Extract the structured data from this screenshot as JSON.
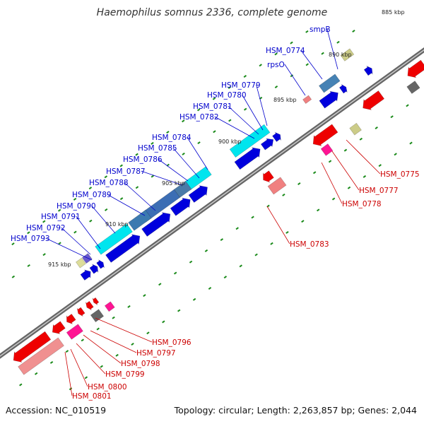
{
  "title": "Haemophilus somnus 2336, complete genome",
  "footer": {
    "accession": "Accession: NC_010519",
    "summary": "Topology: circular; Length: 2,263,857 bp; Genes: 2,044"
  },
  "kbp_labels": [
    "885 kbp",
    "890 kbp",
    "895 kbp",
    "900 kbp",
    "905 kbp",
    "910 kbp",
    "915 kbp"
  ],
  "colors": {
    "forward_label": "#0000cc",
    "reverse_label": "#cc0000",
    "tick": "#1a8a1a"
  },
  "forward_genes": [
    "smpB",
    "HSM_0774",
    "rpsO",
    "HSM_0779",
    "HSM_0780",
    "HSM_0781",
    "HSM_0782",
    "HSM_0784",
    "HSM_0785",
    "HSM_0786",
    "HSM_0787",
    "HSM_0788",
    "HSM_0789",
    "HSM_0790",
    "HSM_0791",
    "HSM_0792",
    "HSM_0793"
  ],
  "reverse_genes": [
    "HSM_0775",
    "HSM_0777",
    "HSM_0778",
    "HSM_0783",
    "HSM_0796",
    "HSM_0797",
    "HSM_0798",
    "HSM_0799",
    "HSM_0800",
    "HSM_0801"
  ]
}
